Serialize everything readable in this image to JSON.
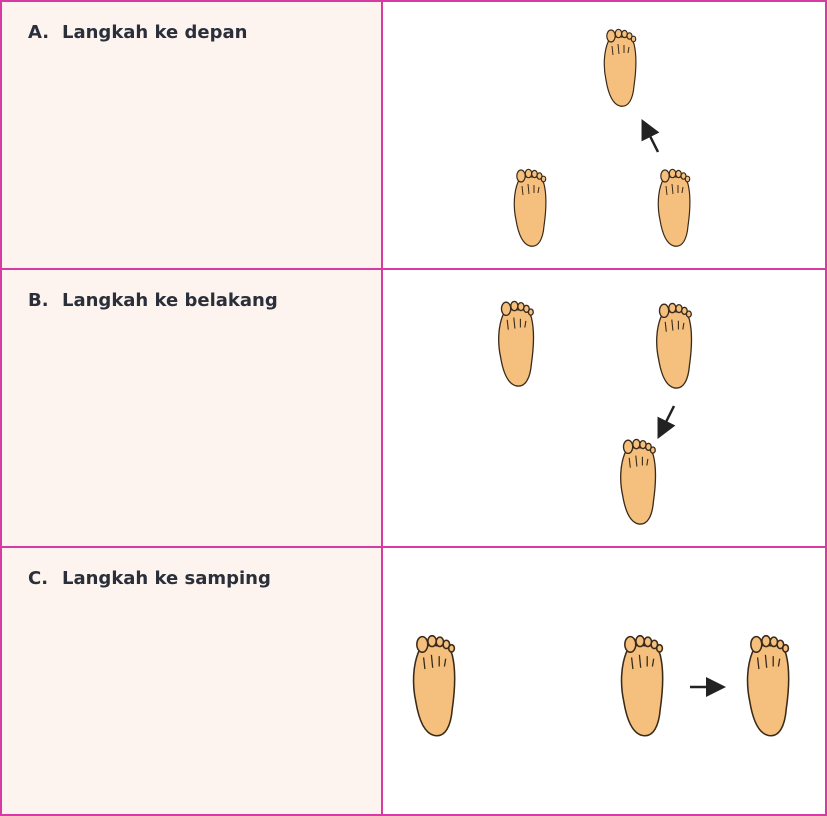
{
  "rows": [
    {
      "letter": "A.",
      "text": "Langkah ke depan",
      "direction": "forward"
    },
    {
      "letter": "B.",
      "text": "Langkah ke belakang",
      "direction": "backward"
    },
    {
      "letter": "C.",
      "text": "Langkah ke samping",
      "direction": "sideways"
    }
  ],
  "colors": {
    "border": "#d63aa4",
    "left_cell_bg": "#fdf4f0",
    "foot_fill": "#f5c07e",
    "foot_stroke": "#3a2a1a",
    "arrow": "#222222"
  }
}
